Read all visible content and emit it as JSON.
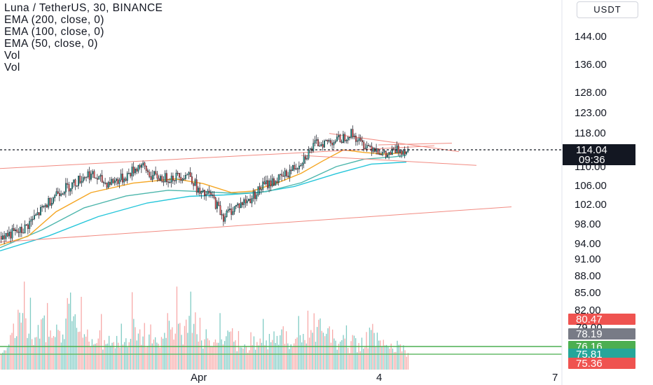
{
  "legend": {
    "title": "Luna / TetherUS, 30, BINANCE",
    "indicators": [
      "EMA (200, close, 0)",
      "EMA (100, close, 0)",
      "EMA (50, close, 0)",
      "Vol",
      "Vol"
    ]
  },
  "currency_button": "USDT",
  "colors": {
    "up": "#26a69a",
    "down": "#ef5350",
    "ema200": "#26c6da",
    "ema100": "#4db6ac",
    "ema50": "#f5a623",
    "trend": "#f28b82",
    "vol_up": "#80cbc4",
    "vol_down": "#f7a9a8",
    "price_tag": "#131722",
    "green_tag": "#4caf50",
    "red_tag": "#ef5350",
    "gray_tag": "#787b86"
  },
  "chart_data": {
    "type": "candlestick",
    "symbol": "Luna / TetherUS",
    "interval": "30",
    "exchange": "BINANCE",
    "yticks": [
      "144.00",
      "136.00",
      "128.00",
      "123.00",
      "118.00",
      "110.00",
      "106.00",
      "102.00",
      "98.00",
      "94.00",
      "91.00",
      "88.00",
      "85.00",
      "82.00"
    ],
    "xticks": [
      "Apr",
      "4",
      "7"
    ],
    "last_price": "114.04",
    "countdown": "09:36",
    "tags": [
      {
        "value": "80.47",
        "style": "red"
      },
      {
        "value": "79.00",
        "style": "clipped"
      },
      {
        "value": "78.19",
        "style": "gray"
      },
      {
        "value": "76.16",
        "style": "green"
      },
      {
        "value": "75.81",
        "style": "teal"
      },
      {
        "value": "75.36",
        "style": "red"
      }
    ],
    "price_path": [
      [
        0,
        95.5
      ],
      [
        30,
        96.5
      ],
      [
        60,
        101
      ],
      [
        80,
        104.5
      ],
      [
        100,
        106
      ],
      [
        125,
        108.5
      ],
      [
        150,
        106.5
      ],
      [
        175,
        107.5
      ],
      [
        200,
        110.5
      ],
      [
        215,
        108
      ],
      [
        235,
        107.5
      ],
      [
        255,
        108
      ],
      [
        270,
        108.5
      ],
      [
        285,
        104
      ],
      [
        300,
        104
      ],
      [
        318,
        99.5
      ],
      [
        335,
        101.5
      ],
      [
        355,
        103
      ],
      [
        375,
        106
      ],
      [
        400,
        107.5
      ],
      [
        425,
        110.5
      ],
      [
        450,
        115.5
      ],
      [
        470,
        116
      ],
      [
        485,
        116.5
      ],
      [
        500,
        118
      ],
      [
        515,
        115.5
      ],
      [
        535,
        114.5
      ],
      [
        550,
        112.5
      ],
      [
        565,
        114
      ],
      [
        580,
        114
      ]
    ],
    "ema50": [
      [
        0,
        93.7
      ],
      [
        40,
        95.5
      ],
      [
        80,
        100.5
      ],
      [
        130,
        104.5
      ],
      [
        190,
        106.5
      ],
      [
        250,
        107.4
      ],
      [
        290,
        106.4
      ],
      [
        330,
        104.5
      ],
      [
        360,
        104.8
      ],
      [
        400,
        106.8
      ],
      [
        430,
        108.6
      ],
      [
        460,
        111.3
      ],
      [
        490,
        114.0
      ],
      [
        520,
        113.4
      ],
      [
        550,
        113.0
      ],
      [
        580,
        113.4
      ]
    ],
    "ema100": [
      [
        0,
        93.2
      ],
      [
        60,
        96.8
      ],
      [
        120,
        101.3
      ],
      [
        180,
        103.8
      ],
      [
        240,
        105.0
      ],
      [
        290,
        104.7
      ],
      [
        340,
        104.3
      ],
      [
        380,
        104.7
      ],
      [
        430,
        106.6
      ],
      [
        480,
        110.0
      ],
      [
        520,
        111.8
      ],
      [
        560,
        112.3
      ],
      [
        580,
        112.7
      ]
    ],
    "ema200": [
      [
        0,
        92.6
      ],
      [
        70,
        95.6
      ],
      [
        140,
        99.5
      ],
      [
        210,
        102.3
      ],
      [
        270,
        103.7
      ],
      [
        320,
        104.0
      ],
      [
        370,
        104.5
      ],
      [
        420,
        105.8
      ],
      [
        480,
        108.5
      ],
      [
        530,
        110.6
      ],
      [
        580,
        111.1
      ]
    ],
    "trendlines": [
      {
        "from": [
          0,
          109.6
        ],
        "to": [
          620,
          115.0
        ]
      },
      {
        "from": [
          470,
          117.9
        ],
        "to": [
          655,
          113.6
        ]
      },
      {
        "from": [
          0,
          94.3
        ],
        "to": [
          730,
          101.5
        ]
      },
      {
        "from": [
          430,
          112.7
        ],
        "to": [
          680,
          110.3
        ]
      },
      {
        "from": [
          540,
          115.2
        ],
        "to": [
          645,
          115.6
        ]
      }
    ],
    "horizontal_lines": [
      {
        "value": 114.04,
        "style": "dashed"
      },
      {
        "value": 76.16,
        "style": "solid"
      },
      {
        "value": 75.81,
        "style": "solid"
      }
    ],
    "volume_profile": [
      [
        0,
        0.15
      ],
      [
        15,
        0.4
      ],
      [
        30,
        0.9
      ],
      [
        45,
        0.35
      ],
      [
        60,
        0.6
      ],
      [
        70,
        0.75
      ],
      [
        90,
        0.5
      ],
      [
        100,
        0.85
      ],
      [
        120,
        0.45
      ],
      [
        140,
        0.35
      ],
      [
        160,
        0.3
      ],
      [
        180,
        0.5
      ],
      [
        200,
        0.45
      ],
      [
        225,
        0.35
      ],
      [
        245,
        0.55
      ],
      [
        270,
        0.7
      ],
      [
        290,
        0.3
      ],
      [
        310,
        0.45
      ],
      [
        330,
        0.35
      ],
      [
        350,
        0.25
      ],
      [
        370,
        0.3
      ],
      [
        390,
        0.4
      ],
      [
        410,
        0.35
      ],
      [
        430,
        0.4
      ],
      [
        450,
        0.55
      ],
      [
        470,
        0.35
      ],
      [
        490,
        0.3
      ],
      [
        510,
        0.25
      ],
      [
        530,
        0.35
      ],
      [
        545,
        0.25
      ],
      [
        560,
        0.3
      ],
      [
        575,
        0.15
      ]
    ]
  }
}
